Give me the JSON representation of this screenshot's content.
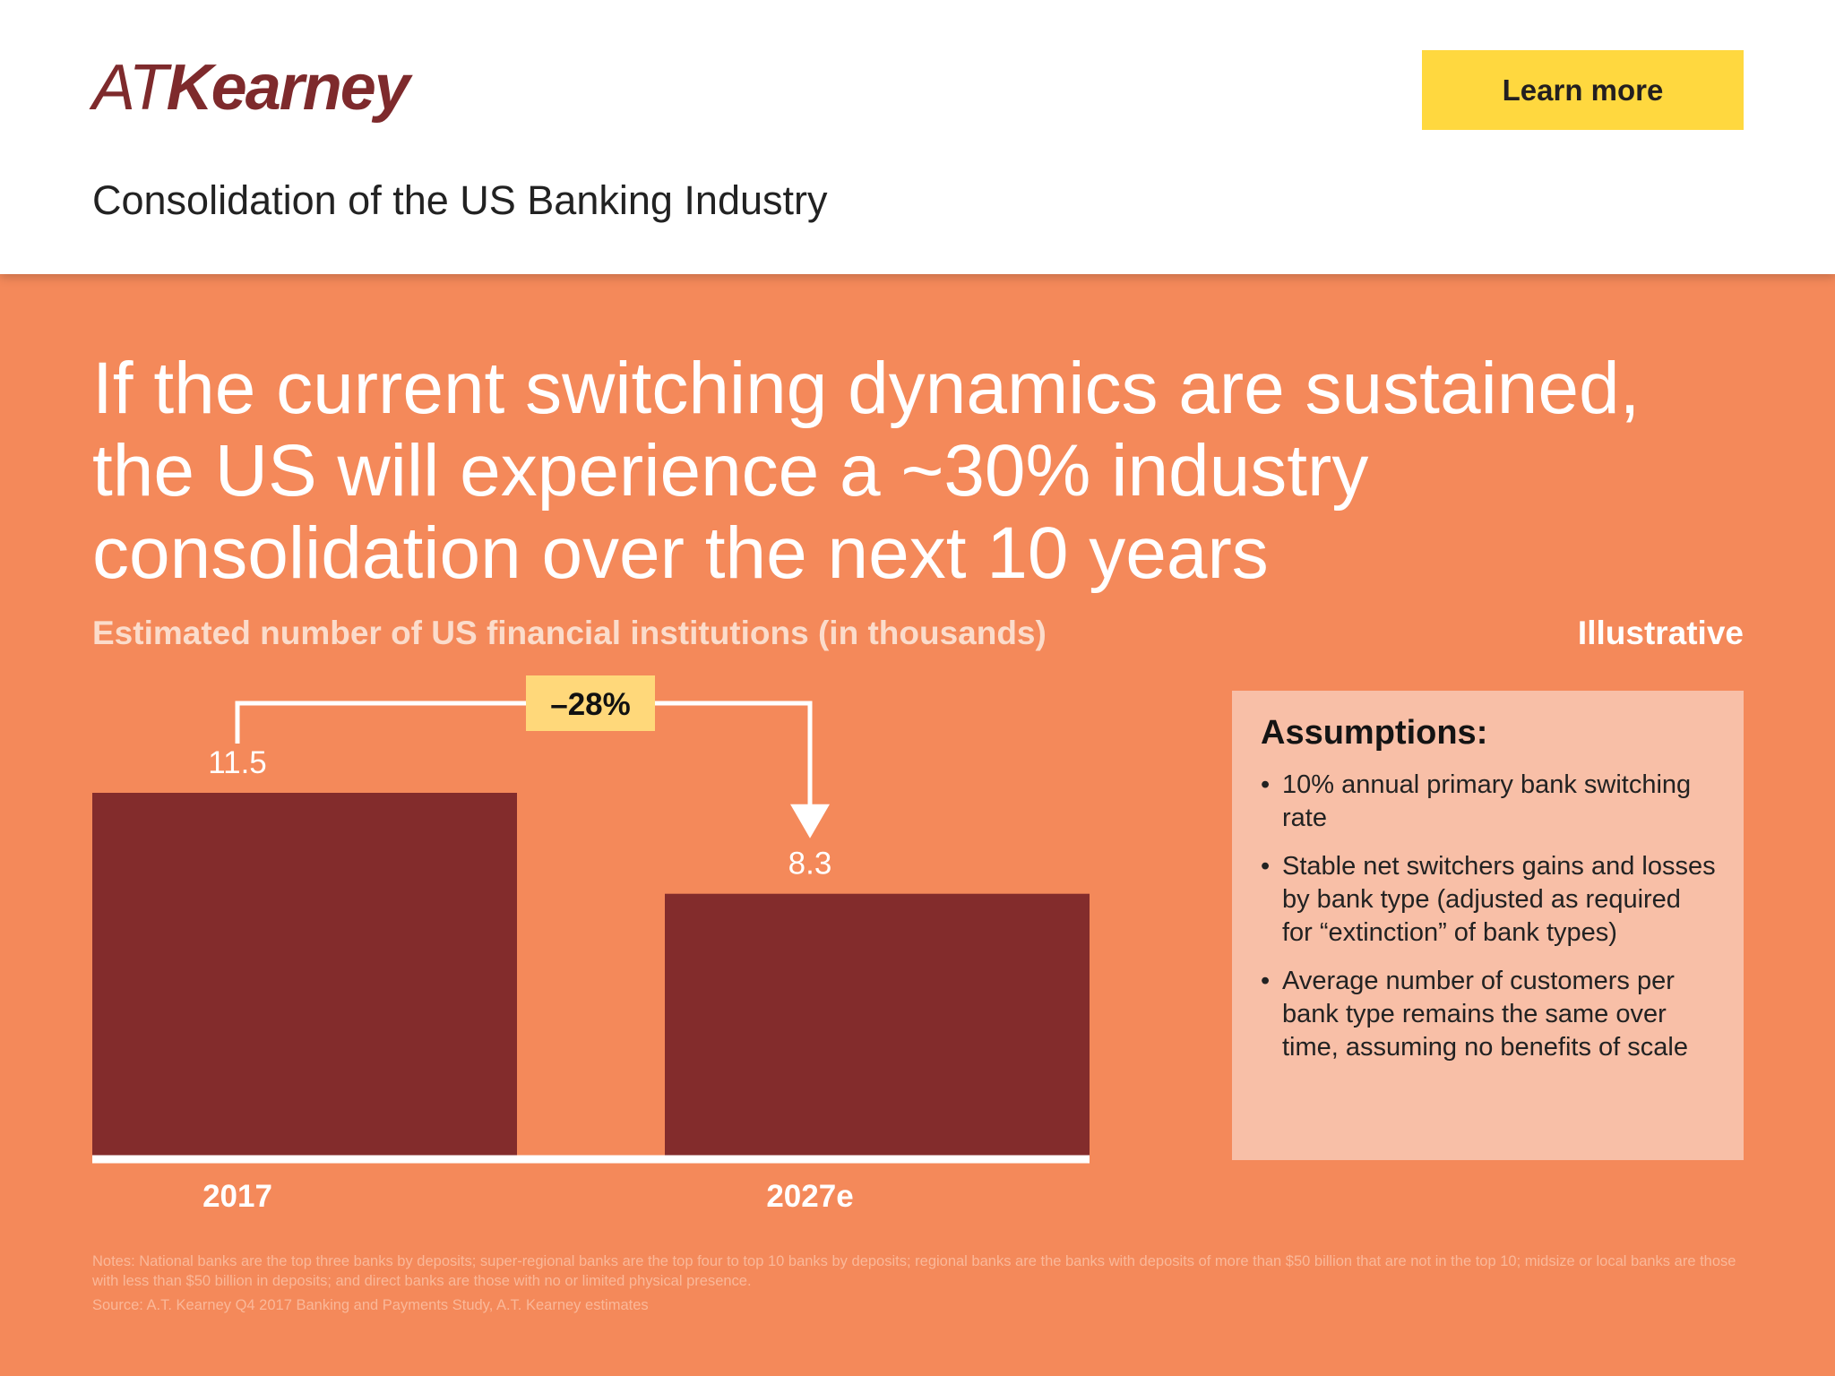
{
  "header": {
    "logo_prefix": "AT",
    "logo_name": "Kearney",
    "learn_more": "Learn more",
    "subtitle": "Consolidation of the US Banking Industry"
  },
  "headline": "If the current switching dynamics are sustained, the US will experience a ~30% industry consolidation over the next 10 years",
  "illustrative": "Illustrative",
  "assumptions": {
    "title": "Assumptions:",
    "items": [
      "10% annual primary bank switching rate",
      "Stable net switchers gains and losses by bank type (adjusted as required for “extinction” of bank types)",
      "Average number of customers per bank type remains the same over time, assuming no benefits of scale"
    ]
  },
  "notes": "Notes: National banks are the top three banks by deposits; super-regional banks are the top four to top 10 banks by deposits; regional banks are the banks with deposits of more than $50 billion that are not in the top 10; midsize or local banks are those with less than $50 billion in deposits; and direct banks are those with no or limited physical presence.",
  "source": "Source: A.T. Kearney Q4 2017 Banking and Payments Study, A.T. Kearney estimates",
  "colors": {
    "background": "#F4895A",
    "bar": "#832C2C",
    "badge": "#FFD87A",
    "brand": "#7E2A2C"
  },
  "chart_data": {
    "type": "bar",
    "title": "Estimated number of US financial institutions (in thousands)",
    "categories": [
      "2017",
      "2027e"
    ],
    "values": [
      11.5,
      8.3
    ],
    "data_labels": [
      "11.5",
      "8.3"
    ],
    "ylim": [
      0,
      11.5
    ],
    "annotation": "–28%",
    "grid": false,
    "legend": "none"
  }
}
